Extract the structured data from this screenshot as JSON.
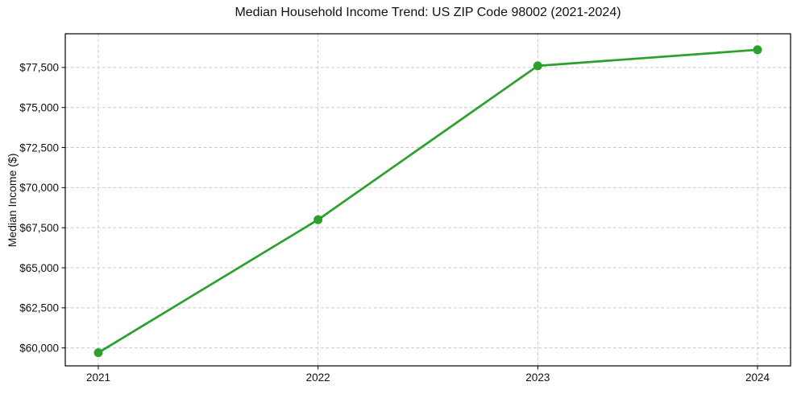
{
  "chart_data": {
    "type": "line",
    "title": "Median Household Income Trend: US ZIP Code 98002 (2021-2024)",
    "xlabel": "",
    "ylabel": "Median Income ($)",
    "categories": [
      "2021",
      "2022",
      "2023",
      "2024"
    ],
    "series": [
      {
        "name": "Median Household Income",
        "values": [
          59700,
          68000,
          77600,
          78600
        ]
      }
    ],
    "ylim": [
      58880,
      79600
    ],
    "yticks": [
      60000,
      62500,
      65000,
      67500,
      70000,
      72500,
      75000,
      77500
    ],
    "ytick_labels": [
      "$60,000",
      "$62,500",
      "$65,000",
      "$67,500",
      "$70,000",
      "$72,500",
      "$75,000",
      "$77,500"
    ],
    "grid": "dashed",
    "legend": "none",
    "line_color": "#2ca02c",
    "marker": "circle"
  }
}
